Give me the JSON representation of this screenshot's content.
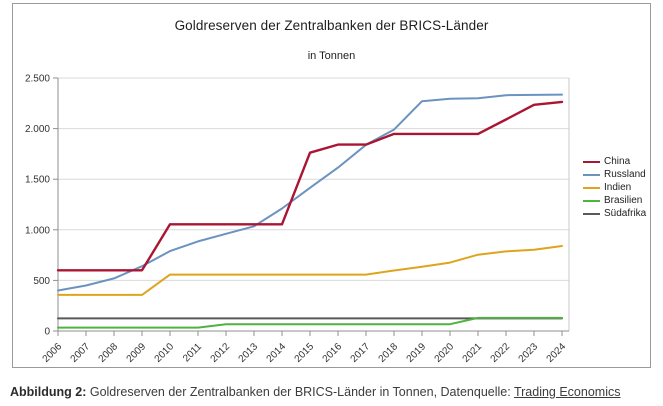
{
  "chart": {
    "title": "Goldreserven der Zentralbanken der BRICS-Länder",
    "subtitle": "in Tonnen"
  },
  "chart_data": {
    "type": "line",
    "title": "Goldreserven der Zentralbanken der BRICS-Länder",
    "subtitle": "in Tonnen",
    "xlabel": "",
    "ylabel": "",
    "ylim": [
      0,
      2500
    ],
    "grid": true,
    "legend_position": "right",
    "yticks": [
      {
        "label": "0",
        "value": 0
      },
      {
        "label": "500",
        "value": 500
      },
      {
        "label": "1.000",
        "value": 1000
      },
      {
        "label": "1.500",
        "value": 1500
      },
      {
        "label": "2.000",
        "value": 2000
      },
      {
        "label": "2.500",
        "value": 2500
      }
    ],
    "x": [
      "2006",
      "2007",
      "2008",
      "2009",
      "2010",
      "2011",
      "2012",
      "2013",
      "2014",
      "2015",
      "2016",
      "2017",
      "2018",
      "2019",
      "2020",
      "2021",
      "2022",
      "2023",
      "2024"
    ],
    "series": [
      {
        "name": "China",
        "color": "#a91532",
        "width": 2.4,
        "values": [
          600,
          600,
          600,
          600,
          1054,
          1054,
          1054,
          1054,
          1054,
          1762,
          1842,
          1842,
          1948,
          1948,
          1948,
          1948,
          2090,
          2235,
          2264
        ]
      },
      {
        "name": "Russland",
        "color": "#6b93c0",
        "width": 2,
        "values": [
          400,
          450,
          520,
          640,
          790,
          885,
          960,
          1035,
          1210,
          1415,
          1615,
          1840,
          1990,
          2271,
          2295,
          2300,
          2330,
          2333,
          2336
        ]
      },
      {
        "name": "Indien",
        "color": "#dfa41c",
        "width": 2,
        "values": [
          357,
          357,
          357,
          357,
          557,
          557,
          557,
          557,
          557,
          557,
          557,
          557,
          598,
          635,
          676,
          754,
          787,
          803,
          840
        ]
      },
      {
        "name": "Brasilien",
        "color": "#50b240",
        "width": 2,
        "values": [
          33.6,
          33.6,
          33.6,
          33.6,
          33.6,
          33.6,
          67.2,
          67.2,
          67.2,
          67.2,
          67.2,
          67.2,
          67.2,
          67.2,
          67.2,
          129.7,
          129.7,
          129.7,
          129.7
        ]
      },
      {
        "name": "Südafrika",
        "color": "#595959",
        "width": 2,
        "values": [
          125,
          125,
          125,
          125,
          125,
          125,
          125,
          125,
          125,
          125,
          125,
          125,
          125,
          125,
          125,
          125,
          125,
          125,
          125
        ]
      }
    ]
  },
  "caption": {
    "label": "Abbildung 2:",
    "text": " Goldreserven der Zentralbanken der BRICS-Länder in Tonnen, Datenquelle: ",
    "link": "Trading Economics"
  }
}
